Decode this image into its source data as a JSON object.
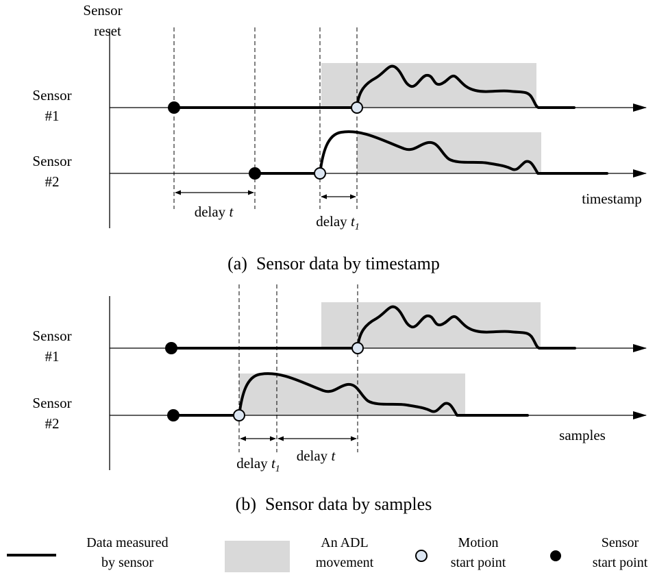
{
  "panel_a": {
    "y_axis_title_line1": "Sensor",
    "y_axis_title_line2": "reset",
    "sensor1_line1": "Sensor",
    "sensor1_line2": "#1",
    "sensor2_line1": "Sensor",
    "sensor2_line2": "#2",
    "x_axis_label": "timestamp",
    "delay_t_prefix": "delay ",
    "delay_t_var": "t",
    "delay_t1_prefix": "delay ",
    "delay_t1_var": "t",
    "delay_t1_sub": "1",
    "caption": "(a)  Sensor data by timestamp"
  },
  "panel_b": {
    "sensor1_line1": "Sensor",
    "sensor1_line2": "#1",
    "sensor2_line1": "Sensor",
    "sensor2_line2": "#2",
    "x_axis_label": "samples",
    "delay_t1_prefix": "delay ",
    "delay_t1_var": "t",
    "delay_t1_sub": "1",
    "delay_t_prefix": "delay ",
    "delay_t_var": "t",
    "caption": "(b)  Sensor data by samples"
  },
  "legend": {
    "data_line1": "Data measured",
    "data_line2": "by sensor",
    "adl_line1": "An ADL",
    "adl_line2": "movement",
    "motion_line1": "Motion",
    "motion_line2": "start point",
    "sensor_line1": "Sensor",
    "sensor_line2": "start point"
  },
  "colors": {
    "adl_fill": "#d9d9d9",
    "motion_fill": "#dce6f2",
    "line": "#000000"
  }
}
